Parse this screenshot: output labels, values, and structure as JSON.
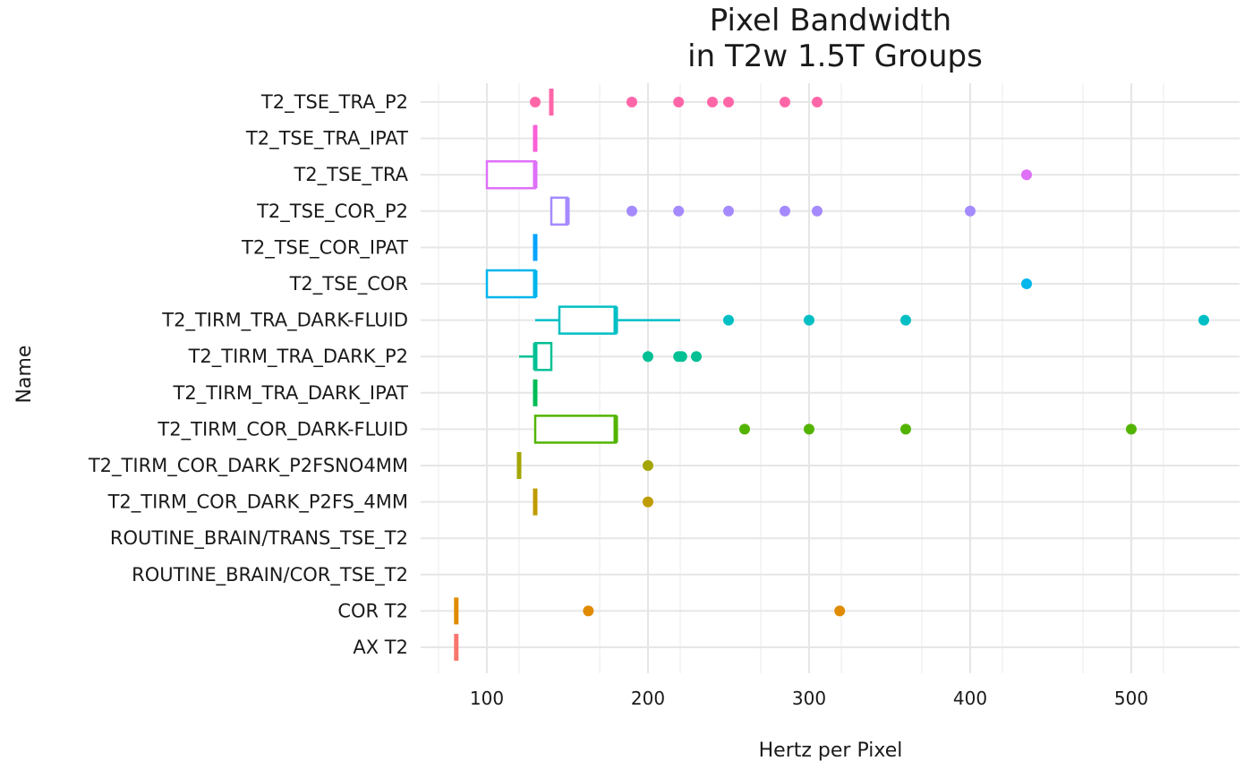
{
  "chart_data": {
    "type": "boxplot",
    "title": [
      "Pixel Bandwidth",
      "in T2w 1.5T Groups"
    ],
    "xlabel": "Hertz per Pixel",
    "ylabel": "Name",
    "xlim": [
      60,
      580
    ],
    "xticks": [
      100,
      200,
      300,
      400,
      500
    ],
    "xtick_labels": [
      "100",
      "200",
      "300",
      "400",
      "500"
    ],
    "grid": true,
    "legend": "none",
    "categories": [
      {
        "name": "AX T2",
        "color": "#F8766D",
        "whisker_low": 81,
        "q1": 81,
        "median": 81,
        "q3": 81,
        "whisker_high": 81,
        "outliers": []
      },
      {
        "name": "COR T2",
        "color": "#E08B00",
        "whisker_low": 81,
        "q1": 81,
        "median": 81,
        "q3": 81,
        "whisker_high": 81,
        "outliers": [
          163,
          319
        ]
      },
      {
        "name": "ROUTINE_BRAIN/COR_TSE_T2",
        "color": "#C09B00",
        "whisker_low": null,
        "q1": null,
        "median": null,
        "q3": null,
        "whisker_high": null,
        "outliers": []
      },
      {
        "name": "ROUTINE_BRAIN/TRANS_TSE_T2",
        "color": "#C09B00",
        "whisker_low": null,
        "q1": null,
        "median": null,
        "q3": null,
        "whisker_high": null,
        "outliers": []
      },
      {
        "name": "T2_TIRM_COR_DARK_P2FS_4MM",
        "color": "#C09B00",
        "whisker_low": 130,
        "q1": 130,
        "median": 130,
        "q3": 130,
        "whisker_high": 130,
        "outliers": [
          200
        ]
      },
      {
        "name": "T2_TIRM_COR_DARK_P2FSNO4MM",
        "color": "#A3A500",
        "whisker_low": 120,
        "q1": 120,
        "median": 120,
        "q3": 120,
        "whisker_high": 120,
        "outliers": [
          200
        ]
      },
      {
        "name": "T2_TIRM_COR_DARK-FLUID",
        "color": "#53B400",
        "whisker_low": 130,
        "q1": 130,
        "median": 180,
        "q3": 180,
        "whisker_high": 180,
        "outliers": [
          260,
          300,
          360,
          500
        ]
      },
      {
        "name": "T2_TIRM_TRA_DARK_IPAT",
        "color": "#00BC56",
        "whisker_low": 130,
        "q1": 130,
        "median": 130,
        "q3": 130,
        "whisker_high": 130,
        "outliers": []
      },
      {
        "name": "T2_TIRM_TRA_DARK_P2",
        "color": "#00C094",
        "whisker_low": 120,
        "q1": 130,
        "median": 130,
        "q3": 140,
        "whisker_high": 140,
        "outliers": [
          200,
          219,
          221,
          230
        ]
      },
      {
        "name": "T2_TIRM_TRA_DARK-FLUID",
        "color": "#00BFC4",
        "whisker_low": 130,
        "q1": 145,
        "median": 180,
        "q3": 180,
        "whisker_high": 220,
        "outliers": [
          250,
          300,
          360,
          545
        ]
      },
      {
        "name": "T2_TSE_COR",
        "color": "#00B6EB",
        "whisker_low": 100,
        "q1": 100,
        "median": 130,
        "q3": 130,
        "whisker_high": 130,
        "outliers": [
          435
        ]
      },
      {
        "name": "T2_TSE_COR_IPAT",
        "color": "#06A4FF",
        "whisker_low": 130,
        "q1": 130,
        "median": 130,
        "q3": 130,
        "whisker_high": 130,
        "outliers": []
      },
      {
        "name": "T2_TSE_COR_P2",
        "color": "#A58AFF",
        "whisker_low": 140,
        "q1": 140,
        "median": 150,
        "q3": 150,
        "whisker_high": 150,
        "outliers": [
          190,
          219,
          250,
          285,
          305,
          400
        ]
      },
      {
        "name": "T2_TSE_TRA",
        "color": "#DF70F8",
        "whisker_low": 100,
        "q1": 100,
        "median": 130,
        "q3": 130,
        "whisker_high": 130,
        "outliers": [
          435
        ]
      },
      {
        "name": "T2_TSE_TRA_IPAT",
        "color": "#FB61D7",
        "whisker_low": 130,
        "q1": 130,
        "median": 130,
        "q3": 130,
        "whisker_high": 130,
        "outliers": []
      },
      {
        "name": "T2_TSE_TRA_P2",
        "color": "#FF66A8",
        "whisker_low": 140,
        "q1": 140,
        "median": 140,
        "q3": 140,
        "whisker_high": 140,
        "outliers": [
          130,
          190,
          219,
          240,
          250,
          285,
          305
        ]
      }
    ]
  }
}
